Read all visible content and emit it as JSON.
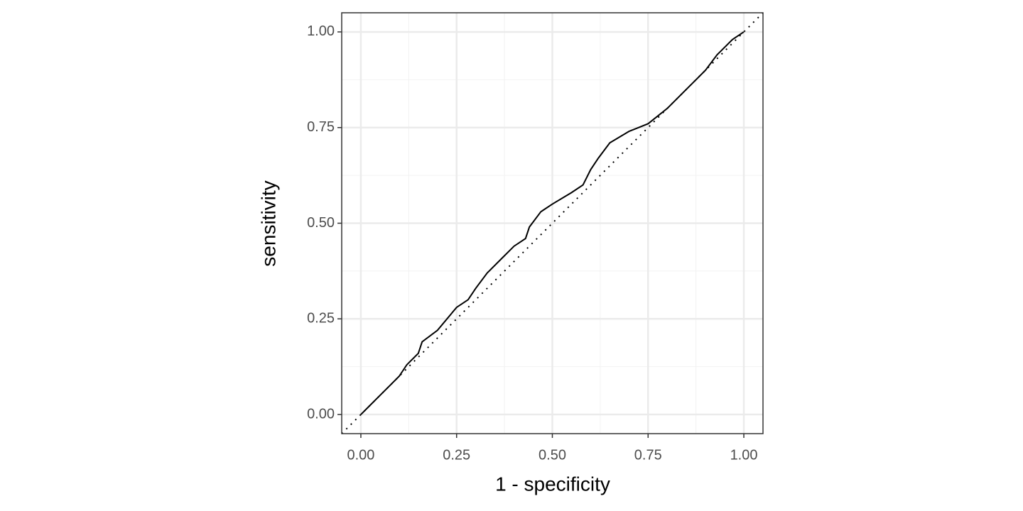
{
  "chart_data": {
    "type": "line",
    "x_label": "1 - specificity",
    "y_label": "sensitivity",
    "x": [
      0,
      0.02,
      0.05,
      0.08,
      0.1,
      0.12,
      0.15,
      0.16,
      0.2,
      0.25,
      0.28,
      0.3,
      0.33,
      0.37,
      0.4,
      0.43,
      0.44,
      0.47,
      0.5,
      0.55,
      0.58,
      0.6,
      0.62,
      0.65,
      0.7,
      0.75,
      0.8,
      0.85,
      0.88,
      0.9,
      0.93,
      0.97,
      1
    ],
    "values": [
      0,
      0.02,
      0.05,
      0.08,
      0.1,
      0.13,
      0.16,
      0.19,
      0.22,
      0.28,
      0.3,
      0.33,
      0.37,
      0.41,
      0.44,
      0.46,
      0.49,
      0.53,
      0.55,
      0.58,
      0.6,
      0.64,
      0.67,
      0.71,
      0.74,
      0.76,
      0.8,
      0.85,
      0.88,
      0.9,
      0.94,
      0.98,
      1
    ],
    "color": "#000000",
    "xlim": [
      -0.05,
      1.05
    ],
    "ylim": [
      -0.05,
      1.05
    ],
    "xticks": [
      {
        "value": 0,
        "label": "0.00"
      },
      {
        "value": 0.25,
        "label": "0.25"
      },
      {
        "value": 0.5,
        "label": "0.50"
      },
      {
        "value": 0.75,
        "label": "0.75"
      },
      {
        "value": 1,
        "label": "1.00"
      }
    ],
    "yticks": [
      {
        "value": 0,
        "label": "0.00"
      },
      {
        "value": 0.25,
        "label": "0.25"
      },
      {
        "value": 0.5,
        "label": "0.50"
      },
      {
        "value": 0.75,
        "label": "0.75"
      },
      {
        "value": 1,
        "label": "1.00"
      }
    ],
    "xminor": [
      0.125,
      0.375,
      0.625,
      0.875
    ],
    "yminor": [
      0.125,
      0.375,
      0.625,
      0.875
    ],
    "grid": true,
    "diagonal": true
  }
}
